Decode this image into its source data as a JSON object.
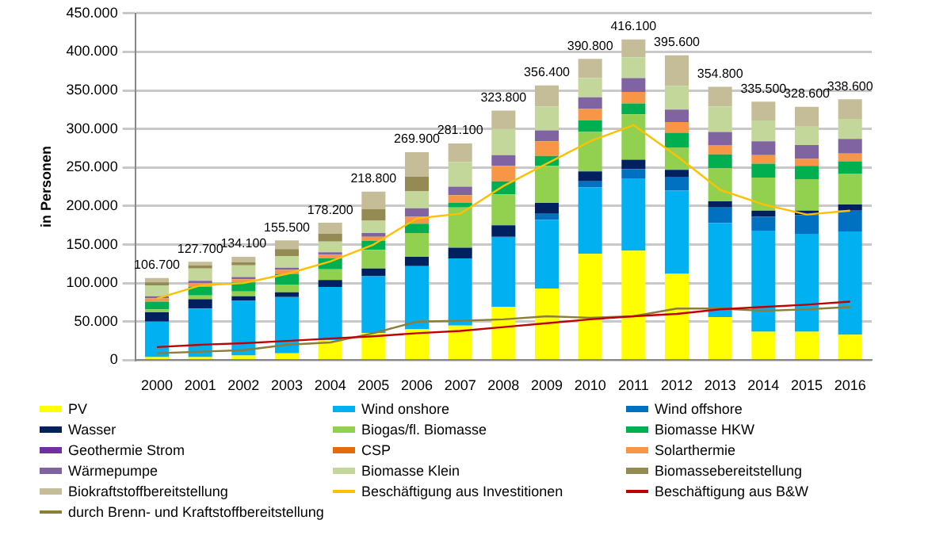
{
  "chart_data": {
    "type": "bar",
    "stacked": true,
    "ylabel": "in Personen",
    "categories": [
      "2000",
      "2001",
      "2002",
      "2003",
      "2004",
      "2005",
      "2006",
      "2007",
      "2008",
      "2009",
      "2010",
      "2011",
      "2012",
      "2013",
      "2014",
      "2015",
      "2016"
    ],
    "ylim": [
      0,
      450000
    ],
    "yticks": [
      {
        "value": 0,
        "label": "0"
      },
      {
        "value": 50000,
        "label": "50.000"
      },
      {
        "value": 100000,
        "label": "100.000"
      },
      {
        "value": 150000,
        "label": "150.000"
      },
      {
        "value": 200000,
        "label": "200.000"
      },
      {
        "value": 250000,
        "label": "250.000"
      },
      {
        "value": 300000,
        "label": "300.000"
      },
      {
        "value": 350000,
        "label": "350.000"
      },
      {
        "value": 400000,
        "label": "400.000"
      },
      {
        "value": 450000,
        "label": "450.000"
      }
    ],
    "grid": "y",
    "legend": "bottom",
    "marker": "none",
    "totals": [
      "106.700",
      "127.700",
      "134.100",
      "155.500",
      "178.200",
      "218.800",
      "269.900",
      "281.100",
      "323.800",
      "356.400",
      "390.800",
      "416.100",
      "395.600",
      "354.800",
      "335.500",
      "328.600",
      "338.600"
    ],
    "series": [
      {
        "name": "PV",
        "color": "#ffff00",
        "values": [
          4000,
          4000,
          6000,
          9000,
          26000,
          35000,
          40000,
          45000,
          69000,
          93000,
          138000,
          142000,
          112000,
          56000,
          37000,
          37000,
          33000
        ]
      },
      {
        "name": "Wind onshore",
        "color": "#00b0f0",
        "values": [
          46000,
          63000,
          71000,
          73000,
          69000,
          74000,
          82000,
          87000,
          90000,
          89000,
          86000,
          94000,
          108000,
          122000,
          131000,
          127000,
          134000
        ]
      },
      {
        "name": "Wind offshore",
        "color": "#0070c0",
        "values": [
          0,
          0,
          0,
          0,
          0,
          0,
          0,
          0,
          1000,
          8000,
          8000,
          12000,
          18000,
          20000,
          18000,
          24000,
          27000
        ]
      },
      {
        "name": "Wasser",
        "color": "#002060",
        "values": [
          12000,
          12000,
          6000,
          6000,
          9000,
          10000,
          12000,
          14000,
          15000,
          14000,
          13000,
          12000,
          9000,
          8000,
          8000,
          6000,
          8000
        ]
      },
      {
        "name": "Biogas/fl. Biomasse",
        "color": "#92d050",
        "values": [
          4000,
          5000,
          6000,
          10000,
          14000,
          24000,
          31000,
          52000,
          40000,
          48000,
          51000,
          59000,
          29000,
          43000,
          43000,
          41000,
          40000
        ]
      },
      {
        "name": "Biomasse HKW",
        "color": "#00b050",
        "values": [
          10000,
          11000,
          12000,
          14000,
          14000,
          12000,
          12000,
          6000,
          17000,
          13000,
          15000,
          14000,
          19000,
          18000,
          18000,
          17000,
          16000
        ]
      },
      {
        "name": "Geothermie Strom",
        "color": "#7030a0",
        "values": [
          0,
          0,
          0,
          0,
          0,
          0,
          0,
          0,
          0,
          0,
          0,
          0,
          0,
          0,
          0,
          0,
          0
        ]
      },
      {
        "name": "CSP",
        "color": "#e46c0a",
        "values": [
          0,
          0,
          0,
          0,
          0,
          0,
          0,
          0,
          0,
          0,
          0,
          0,
          0,
          0,
          0,
          0,
          0
        ]
      },
      {
        "name": "Solarthermie",
        "color": "#f79646",
        "values": [
          4000,
          5000,
          4000,
          5000,
          5000,
          5000,
          9000,
          10000,
          20000,
          19000,
          15000,
          15000,
          14000,
          12000,
          11000,
          9000,
          10000
        ]
      },
      {
        "name": "Wärmepumpe",
        "color": "#8064a2",
        "values": [
          3000,
          3000,
          3000,
          3000,
          3000,
          5000,
          11000,
          11000,
          14000,
          14000,
          15000,
          18000,
          16000,
          17000,
          18000,
          18000,
          19000
        ]
      },
      {
        "name": "Biomasse Klein",
        "color": "#c4d79b",
        "values": [
          14000,
          16000,
          15000,
          15000,
          14000,
          16000,
          22000,
          32000,
          34000,
          31000,
          25000,
          27000,
          31000,
          33000,
          27000,
          24000,
          26000
        ]
      },
      {
        "name": "Biomassebereitstellung",
        "color": "#948a54",
        "values": [
          4000,
          4000,
          4000,
          9000,
          10000,
          15000,
          19000,
          0,
          0,
          0,
          0,
          0,
          0,
          0,
          0,
          0,
          0
        ]
      },
      {
        "name": "Biokraftstoffbereitstellung",
        "color": "#c4bd97",
        "values": [
          5700,
          4700,
          7100,
          11500,
          14200,
          22800,
          31900,
          24100,
          23800,
          27400,
          24800,
          23100,
          39600,
          25800,
          24500,
          25600,
          25600
        ]
      },
      {
        "name": "Beschäftigung aus Investitionen",
        "type": "line",
        "color": "#ffc000",
        "values": [
          80000,
          97000,
          100000,
          112000,
          128000,
          150000,
          184000,
          190000,
          226000,
          255000,
          284000,
          305000,
          265000,
          221000,
          202000,
          189000,
          194000
        ]
      },
      {
        "name": "Beschäftigung aus B&W",
        "type": "line",
        "color": "#c00000",
        "values": [
          17000,
          20000,
          22000,
          25000,
          28000,
          31000,
          35000,
          38000,
          43000,
          48000,
          53000,
          57000,
          60000,
          66000,
          69000,
          72000,
          76000
        ]
      },
      {
        "name": "durch Brenn- und Kraftstoffbereitstellung",
        "type": "line",
        "color": "#8b7d3a",
        "values": [
          9000,
          11000,
          13000,
          20000,
          23000,
          35000,
          50000,
          51000,
          53000,
          57000,
          55000,
          57000,
          67000,
          67000,
          64000,
          66000,
          69000
        ]
      }
    ]
  }
}
